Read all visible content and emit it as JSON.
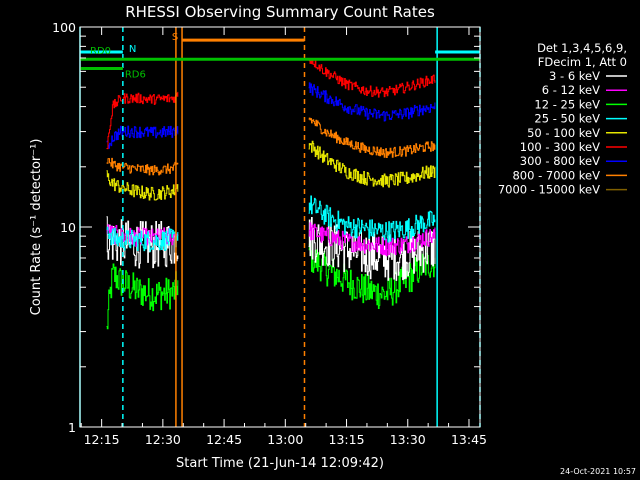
{
  "chart_data": {
    "type": "line",
    "title": "RHESSI Observing Summary Count Rates",
    "xlabel": "Start Time (21-Jun-14 12:09:42)",
    "ylabel": "Count Rate (s⁻¹ detector⁻¹)",
    "yscale": "log",
    "ylim": [
      1,
      100
    ],
    "xlim_minutes": [
      0,
      98
    ],
    "x_ticks": [
      {
        "label": "12:15",
        "minute": 5.3
      },
      {
        "label": "12:30",
        "minute": 20.3
      },
      {
        "label": "12:45",
        "minute": 35.3
      },
      {
        "label": "13:00",
        "minute": 50.3
      },
      {
        "label": "13:15",
        "minute": 65.3
      },
      {
        "label": "13:30",
        "minute": 80.3
      },
      {
        "label": "13:45",
        "minute": 95.3
      }
    ],
    "y_ticks": [
      {
        "label": "1",
        "value": 1
      },
      {
        "label": "10",
        "value": 10
      },
      {
        "label": "100",
        "value": 100
      }
    ],
    "legend": {
      "placement": "right",
      "header": [
        "Det 1,3,4,5,6,9,",
        "FDecim 1, Att 0"
      ]
    },
    "series": [
      {
        "name": "3 - 6 keV",
        "color": "#ffffff",
        "seg1": [
          [
            6.5,
            9
          ],
          [
            8,
            8.5
          ],
          [
            10,
            8.3
          ],
          [
            14,
            8.2
          ],
          [
            18,
            8.1
          ],
          [
            23,
            8.3
          ],
          [
            24,
            8.6
          ]
        ],
        "seg2": [
          [
            56,
            9
          ],
          [
            60,
            8.3
          ],
          [
            65,
            7.7
          ],
          [
            70,
            7.3
          ],
          [
            75,
            7.0
          ],
          [
            80,
            7.2
          ],
          [
            84,
            7.7
          ],
          [
            87,
            8.0
          ]
        ]
      },
      {
        "name": "6 - 12 keV",
        "color": "#ff00ff",
        "seg1": [
          [
            6.5,
            9.5
          ],
          [
            8,
            9.2
          ],
          [
            10,
            9.0
          ],
          [
            14,
            8.9
          ],
          [
            18,
            8.8
          ],
          [
            23,
            9.0
          ],
          [
            24,
            9.3
          ]
        ],
        "seg2": [
          [
            56,
            9.6
          ],
          [
            60,
            9.0
          ],
          [
            65,
            8.5
          ],
          [
            70,
            8.2
          ],
          [
            75,
            8.0
          ],
          [
            80,
            8.2
          ],
          [
            84,
            8.8
          ],
          [
            87,
            9.0
          ]
        ]
      },
      {
        "name": "12 - 25 keV",
        "color": "#00ff00",
        "seg1": [
          [
            6.5,
            3
          ],
          [
            8,
            5.8
          ],
          [
            10,
            5.3
          ],
          [
            14,
            4.8
          ],
          [
            18,
            4.6
          ],
          [
            23,
            4.7
          ],
          [
            24,
            5.3
          ]
        ],
        "seg2": [
          [
            56,
            7.2
          ],
          [
            60,
            6.2
          ],
          [
            65,
            5.4
          ],
          [
            70,
            4.8
          ],
          [
            75,
            4.6
          ],
          [
            80,
            5.4
          ],
          [
            84,
            6.4
          ],
          [
            87,
            6.7
          ]
        ]
      },
      {
        "name": "25 - 50 keV",
        "color": "#00ffff",
        "seg1": [
          [
            6.5,
            10
          ],
          [
            8,
            8.8
          ],
          [
            10,
            8.6
          ],
          [
            14,
            8.6
          ],
          [
            18,
            8.5
          ],
          [
            23,
            8.7
          ],
          [
            24,
            9.2
          ]
        ],
        "seg2": [
          [
            56,
            13
          ],
          [
            60,
            11.5
          ],
          [
            65,
            10.2
          ],
          [
            70,
            9.8
          ],
          [
            75,
            9.5
          ],
          [
            80,
            9.8
          ],
          [
            84,
            10.5
          ],
          [
            87,
            10.8
          ]
        ]
      },
      {
        "name": "50 - 100 keV",
        "color": "#e6e600",
        "seg1": [
          [
            6.5,
            18
          ],
          [
            8,
            16.5
          ],
          [
            10,
            15.8
          ],
          [
            14,
            15.0
          ],
          [
            18,
            14.6
          ],
          [
            23,
            15.2
          ],
          [
            24,
            16
          ]
        ],
        "seg2": [
          [
            56,
            26
          ],
          [
            60,
            22
          ],
          [
            65,
            19
          ],
          [
            70,
            17.5
          ],
          [
            75,
            17
          ],
          [
            80,
            17.5
          ],
          [
            84,
            18.5
          ],
          [
            87,
            19
          ]
        ]
      },
      {
        "name": "100 - 300 keV",
        "color": "#ff0000",
        "seg1": [
          [
            6.5,
            24
          ],
          [
            8,
            40
          ],
          [
            10,
            44
          ],
          [
            14,
            44
          ],
          [
            18,
            43.5
          ],
          [
            23,
            44
          ],
          [
            24,
            46
          ]
        ],
        "seg2": [
          [
            56,
            70
          ],
          [
            60,
            60
          ],
          [
            65,
            52
          ],
          [
            70,
            48
          ],
          [
            75,
            47
          ],
          [
            80,
            50
          ],
          [
            84,
            53
          ],
          [
            87,
            55
          ]
        ]
      },
      {
        "name": "300 - 800 keV",
        "color": "#0000ff",
        "seg1": [
          [
            6.5,
            25
          ],
          [
            8,
            28
          ],
          [
            10,
            30
          ],
          [
            14,
            30
          ],
          [
            18,
            29.5
          ],
          [
            23,
            30
          ],
          [
            24,
            31
          ]
        ],
        "seg2": [
          [
            56,
            50
          ],
          [
            60,
            45
          ],
          [
            65,
            40
          ],
          [
            70,
            37
          ],
          [
            75,
            36
          ],
          [
            80,
            37
          ],
          [
            84,
            39
          ],
          [
            87,
            40
          ]
        ]
      },
      {
        "name": "800 - 7000 keV",
        "color": "#ff8000",
        "seg1": [
          [
            6.5,
            22
          ],
          [
            8,
            20.5
          ],
          [
            10,
            20
          ],
          [
            14,
            19.5
          ],
          [
            18,
            19.2
          ],
          [
            23,
            19.6
          ],
          [
            24,
            20.5
          ]
        ],
        "seg2": [
          [
            56,
            35
          ],
          [
            60,
            30
          ],
          [
            65,
            26.5
          ],
          [
            70,
            24.5
          ],
          [
            75,
            23.5
          ],
          [
            80,
            24
          ],
          [
            84,
            25
          ],
          [
            87,
            25.5
          ]
        ]
      },
      {
        "name": "7000 - 15000 keV",
        "color": "#806000",
        "seg1": [],
        "seg2": []
      }
    ],
    "annotations": {
      "flags": [
        {
          "label": "N",
          "color": "#00ffff",
          "minute_start": 0,
          "minute_end": 10.5,
          "level": 75
        },
        {
          "label": "N",
          "color": "#00ffff",
          "minute_start": 87,
          "minute_end": 98,
          "level": 75
        },
        {
          "label": "S",
          "color": "#ff8000",
          "minute_start": 25,
          "minute_end": 55,
          "level": 86
        },
        {
          "label": "RD0",
          "color": "#00c000",
          "minute_start": 0,
          "minute_end": 98,
          "level": 69
        },
        {
          "label": "RD6",
          "color": "#00c000",
          "minute_start": 0,
          "minute_end": 10.5,
          "level": 62
        }
      ],
      "vlines": [
        {
          "minute": 0,
          "color": "#00ffff",
          "dashed": false
        },
        {
          "minute": 10.5,
          "color": "#00ffff",
          "dashed": true
        },
        {
          "minute": 23.5,
          "color": "#ff8000",
          "dashed": false
        },
        {
          "minute": 25.0,
          "color": "#ff8000",
          "dashed": false
        },
        {
          "minute": 55.0,
          "color": "#ff8000",
          "dashed": true
        },
        {
          "minute": 87.5,
          "color": "#00ffff",
          "dashed": false
        },
        {
          "minute": 98.0,
          "color": "#00ffff",
          "dashed": true
        }
      ]
    },
    "date_stamp": "24-Oct-2021 10:57"
  }
}
